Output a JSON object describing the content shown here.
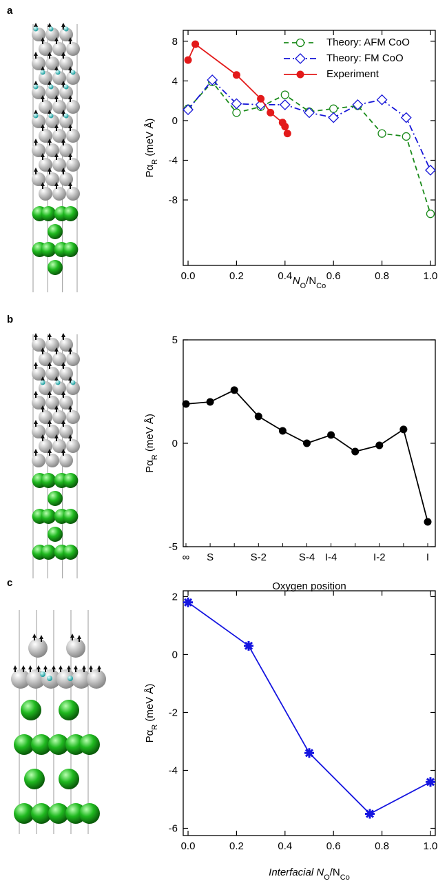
{
  "chart_data": [
    {
      "type": "line",
      "panel": "a",
      "xlabel": [
        {
          "text": "N"
        },
        {
          "text": "O",
          "sub": true
        },
        {
          "text": "/N"
        },
        {
          "text": "Co",
          "sub": true
        }
      ],
      "ylabel": [
        {
          "text": "Pα"
        },
        {
          "text": "R",
          "sub": true
        },
        {
          "text": " (meV Å)"
        }
      ],
      "xlim": [
        -0.02,
        1.02
      ],
      "ylim": [
        -14.6,
        9.1
      ],
      "xticks": [
        {
          "value": 0,
          "label": "0.0"
        },
        {
          "value": 0.2,
          "label": "0.2"
        },
        {
          "value": 0.4,
          "label": "0.4"
        },
        {
          "value": 0.6,
          "label": "0.6"
        },
        {
          "value": 0.8,
          "label": "0.8"
        },
        {
          "value": 1,
          "label": "1.0"
        }
      ],
      "yticks": [
        -8,
        -4,
        0,
        4,
        8
      ],
      "legend": "upper right",
      "series": [
        {
          "name": "Theory: AFM CoO",
          "color": "#1a8a1a",
          "marker": "open-circle",
          "linestyle": "dashed",
          "x": [
            0,
            0.1,
            0.2,
            0.3,
            0.4,
            0.5,
            0.6,
            0.7,
            0.8,
            0.9,
            1.0
          ],
          "values": [
            1.2,
            3.9,
            0.8,
            1.4,
            2.6,
            0.9,
            1.2,
            1.5,
            -1.3,
            -1.6,
            -9.4
          ]
        },
        {
          "name": "Theory: FM CoO",
          "color": "#1515d8",
          "marker": "open-diamond",
          "linestyle": "dashdot",
          "x": [
            0,
            0.1,
            0.2,
            0.3,
            0.4,
            0.5,
            0.6,
            0.7,
            0.8,
            0.9,
            1.0
          ],
          "values": [
            1.1,
            4.1,
            1.7,
            1.6,
            1.6,
            0.8,
            0.3,
            1.6,
            2.1,
            0.3,
            -5.0
          ]
        },
        {
          "name": "Experiment",
          "color": "#e31a1a",
          "marker": "filled-circle",
          "linestyle": "solid",
          "x": [
            0,
            0.03,
            0.2,
            0.3,
            0.34,
            0.39,
            0.4,
            0.41
          ],
          "values": [
            6.1,
            7.7,
            4.6,
            2.2,
            0.8,
            -0.2,
            -0.6,
            -1.3
          ]
        }
      ]
    },
    {
      "type": "line",
      "panel": "b",
      "xlabel": [
        {
          "text": "Oxygen position"
        }
      ],
      "ylabel": [
        {
          "text": "Pα"
        },
        {
          "text": "R",
          "sub": true
        },
        {
          "text": " (meV Å)"
        }
      ],
      "ylim": [
        -5,
        5
      ],
      "yticks": [
        -5,
        0,
        5
      ],
      "categories": [
        "∞",
        "S",
        null,
        "S-2",
        null,
        "S-4",
        "I-4",
        null,
        "I-2",
        null,
        "I"
      ],
      "series": [
        {
          "color": "#000000",
          "marker": "filled-circle",
          "linestyle": "solid",
          "values": [
            1.9,
            2.0,
            2.57,
            1.3,
            0.6,
            0.0,
            0.4,
            -0.4,
            -0.1,
            0.67,
            -3.8
          ]
        }
      ]
    },
    {
      "type": "line",
      "panel": "c",
      "xlabel": [
        {
          "text": "Interfacial N"
        },
        {
          "text": "O",
          "sub": true
        },
        {
          "text": "/N"
        },
        {
          "text": "Co",
          "sub": true
        }
      ],
      "ylabel": [
        {
          "text": "Pα"
        },
        {
          "text": "R",
          "sub": true
        },
        {
          "text": " (meV Å)"
        }
      ],
      "xlim": [
        -0.02,
        1.02
      ],
      "ylim": [
        -6.25,
        2.2
      ],
      "xticks": [
        {
          "value": 0,
          "label": "0.0"
        },
        {
          "value": 0.2,
          "label": "0.2"
        },
        {
          "value": 0.4,
          "label": "0.4"
        },
        {
          "value": 0.6,
          "label": "0.6"
        },
        {
          "value": 0.8,
          "label": "0.8"
        },
        {
          "value": 1,
          "label": "1.0"
        }
      ],
      "yticks": [
        -6,
        -4,
        -2,
        0,
        2
      ],
      "series": [
        {
          "color": "#1515e0",
          "marker": "star",
          "linestyle": "solid",
          "x": [
            0,
            0.25,
            0.5,
            0.75,
            1.0
          ],
          "values": [
            1.8,
            0.3,
            -3.4,
            -5.5,
            -4.4
          ]
        }
      ]
    }
  ]
}
